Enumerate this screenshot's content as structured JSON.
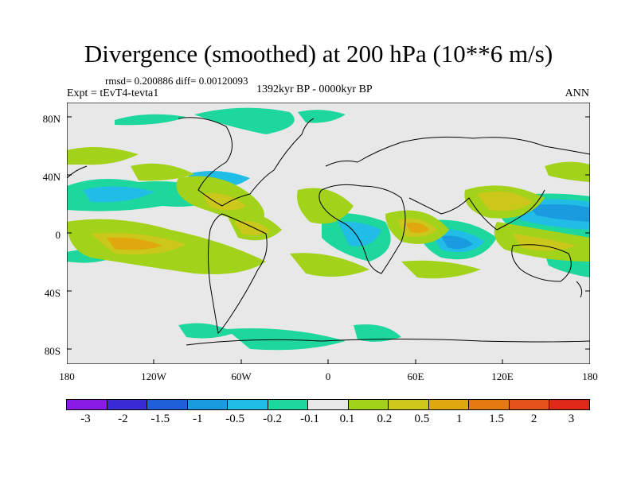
{
  "title": "Divergence (smoothed) at 200 hPa (10**6 m/s)",
  "stats": "rmsd= 0.200886 diff= 0.00120093",
  "expt": "Expt = tEvT4-tevta1",
  "period": "1392kyr BP - 0000kyr BP",
  "season": "ANN",
  "lat_labels": [
    "80N",
    "40N",
    "0",
    "40S",
    "80S"
  ],
  "lon_labels": [
    "180",
    "120W",
    "60W",
    "0",
    "60E",
    "120E",
    "180"
  ],
  "colorbar": {
    "colors": [
      "#8a1be6",
      "#3a2ad4",
      "#1f5fd8",
      "#1a9be0",
      "#22bde6",
      "#1ed79c",
      "#e8e8e8",
      "#a3d21a",
      "#cbc71b",
      "#e0a70f",
      "#e67a12",
      "#e4531a",
      "#e02818"
    ],
    "labels": [
      "-3",
      "-2",
      "-1.5",
      "-1",
      "-0.5",
      "-0.2",
      "-0.1",
      "0.1",
      "0.2",
      "0.5",
      "1",
      "1.5",
      "2",
      "3"
    ]
  }
}
